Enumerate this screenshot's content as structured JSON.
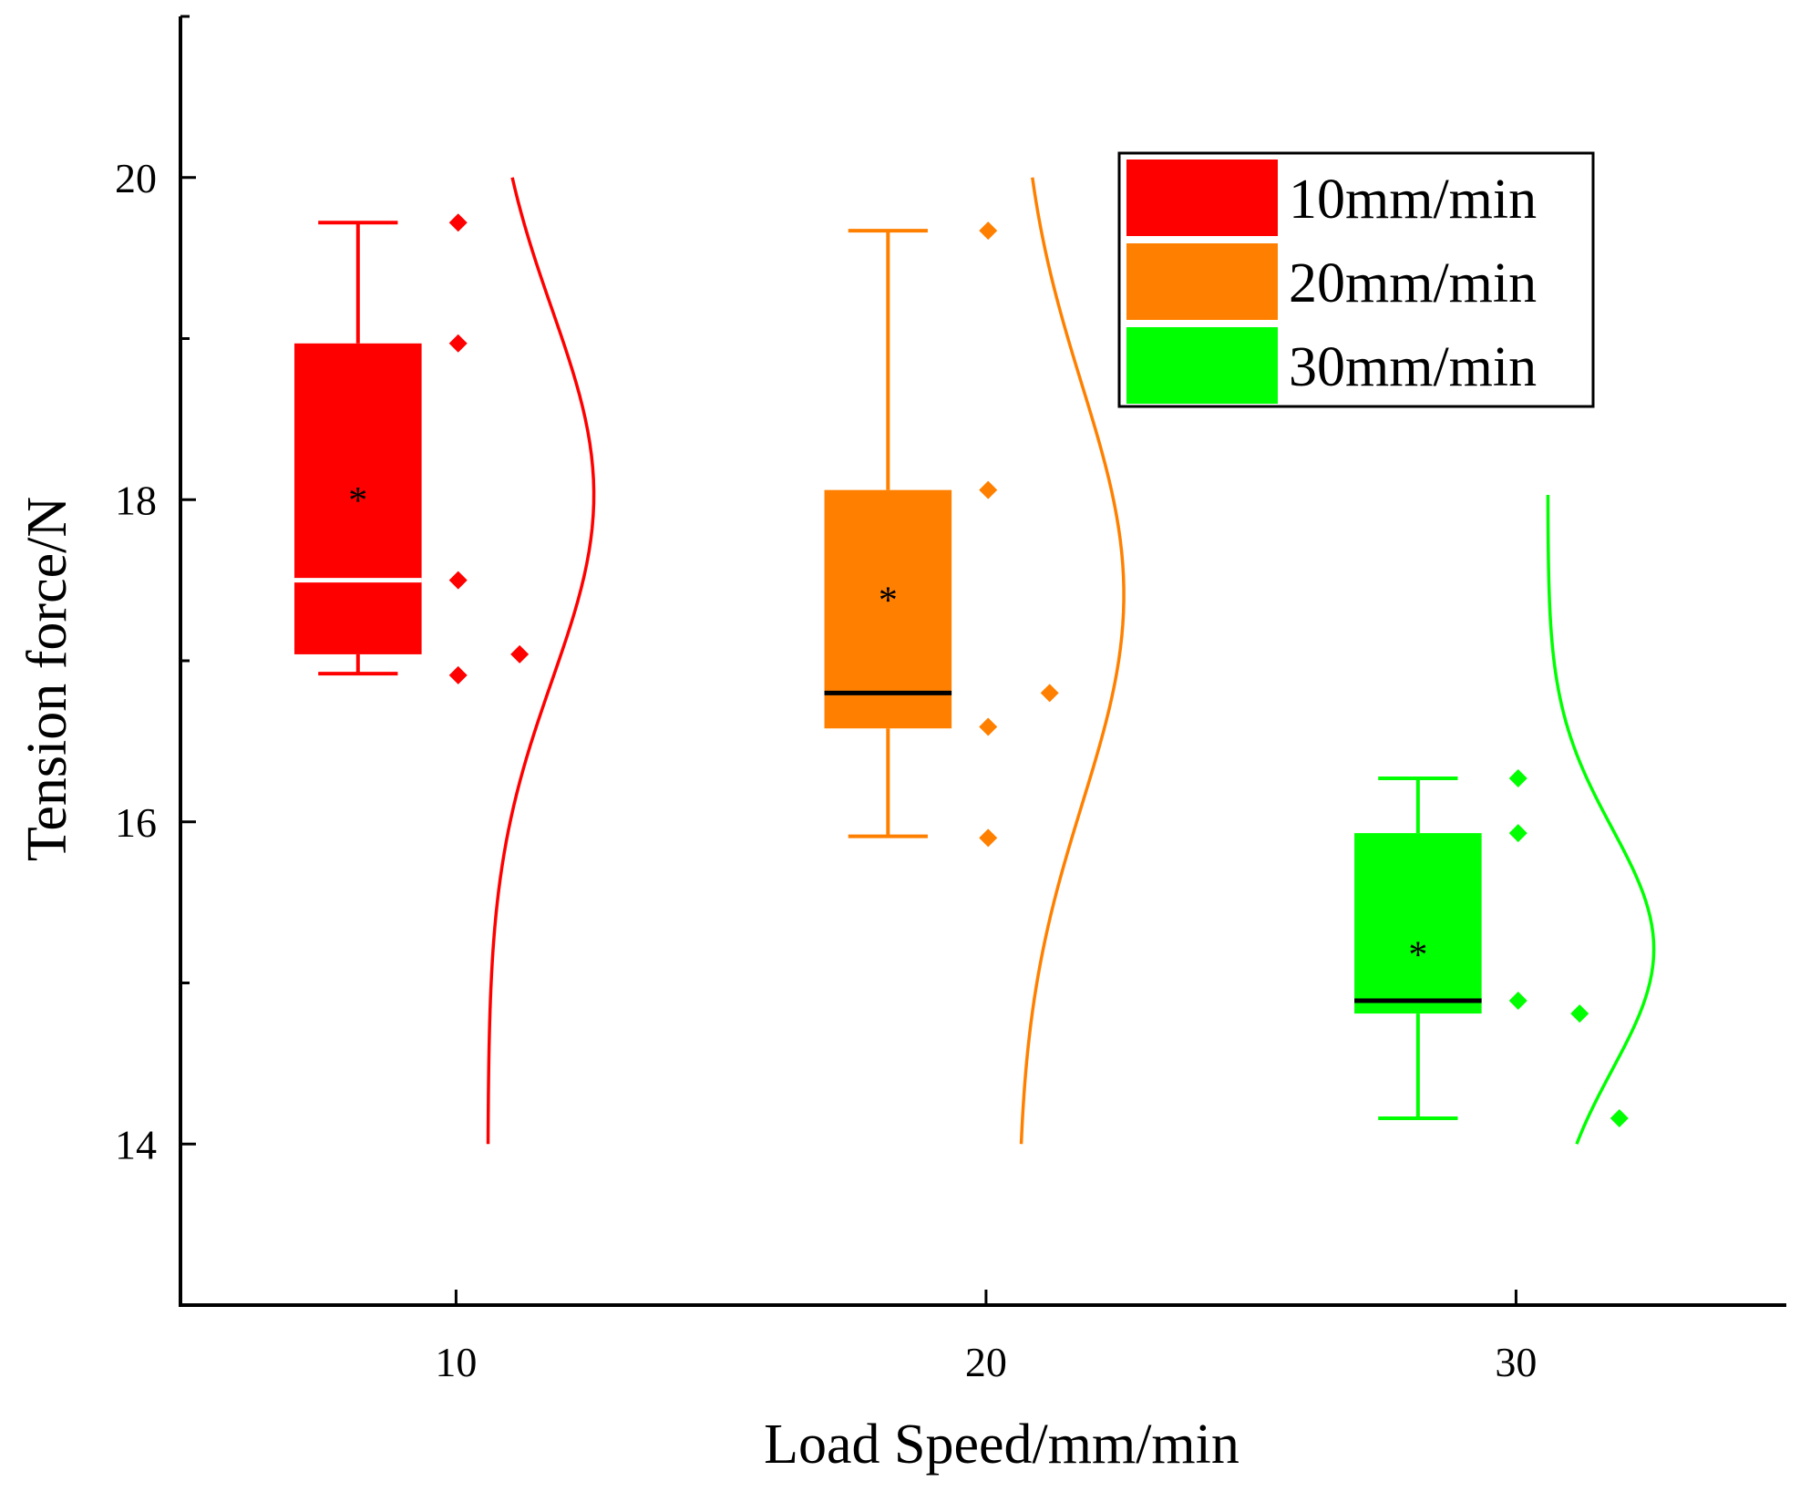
{
  "chart_data": {
    "type": "box",
    "title": "",
    "xlabel": "Load Speed/mm/min",
    "ylabel": "Tension force/N",
    "x_ticks": [
      10,
      20,
      30
    ],
    "y_ticks": [
      14,
      16,
      18,
      20
    ],
    "xlim": [
      4.8,
      35.1
    ],
    "ylim": [
      13,
      21
    ],
    "legend_position": "top-right",
    "series": [
      {
        "name": "10mm/min",
        "label": "10mm/min",
        "x": 10,
        "color": "#ff0000",
        "median_color": "#ffffff",
        "whisker_low": 16.92,
        "q1": 17.04,
        "median": 17.5,
        "q3": 18.97,
        "whisker_high": 19.72,
        "mean": 18.03,
        "points": [
          19.72,
          18.97,
          17.5,
          16.91
        ],
        "outliers": [
          17.04
        ],
        "dist_mean": 18.03,
        "dist_sd": 1.15,
        "dist_range": [
          14,
          20
        ]
      },
      {
        "name": "20mm/min",
        "label": "20mm/min",
        "x": 20,
        "color": "#ff8000",
        "median_color": "#000000",
        "whisker_low": 15.91,
        "q1": 16.58,
        "median": 16.8,
        "q3": 18.06,
        "whisker_high": 19.67,
        "mean": 17.41,
        "points": [
          19.67,
          18.06,
          16.59,
          15.9
        ],
        "outliers": [
          16.8
        ],
        "dist_mean": 17.41,
        "dist_sd": 1.3,
        "dist_range": [
          14,
          20
        ]
      },
      {
        "name": "30mm/min",
        "label": "30mm/min",
        "x": 30,
        "color": "#00ff00",
        "median_color": "#000000",
        "whisker_low": 14.16,
        "q1": 14.81,
        "median": 14.89,
        "q3": 15.93,
        "whisker_high": 16.27,
        "mean": 15.21,
        "points": [
          16.27,
          15.93,
          14.89
        ],
        "outliers": [
          14.81,
          14.16
        ],
        "dist_mean": 15.21,
        "dist_sd": 0.75,
        "dist_range": [
          14,
          18.03
        ]
      }
    ]
  }
}
